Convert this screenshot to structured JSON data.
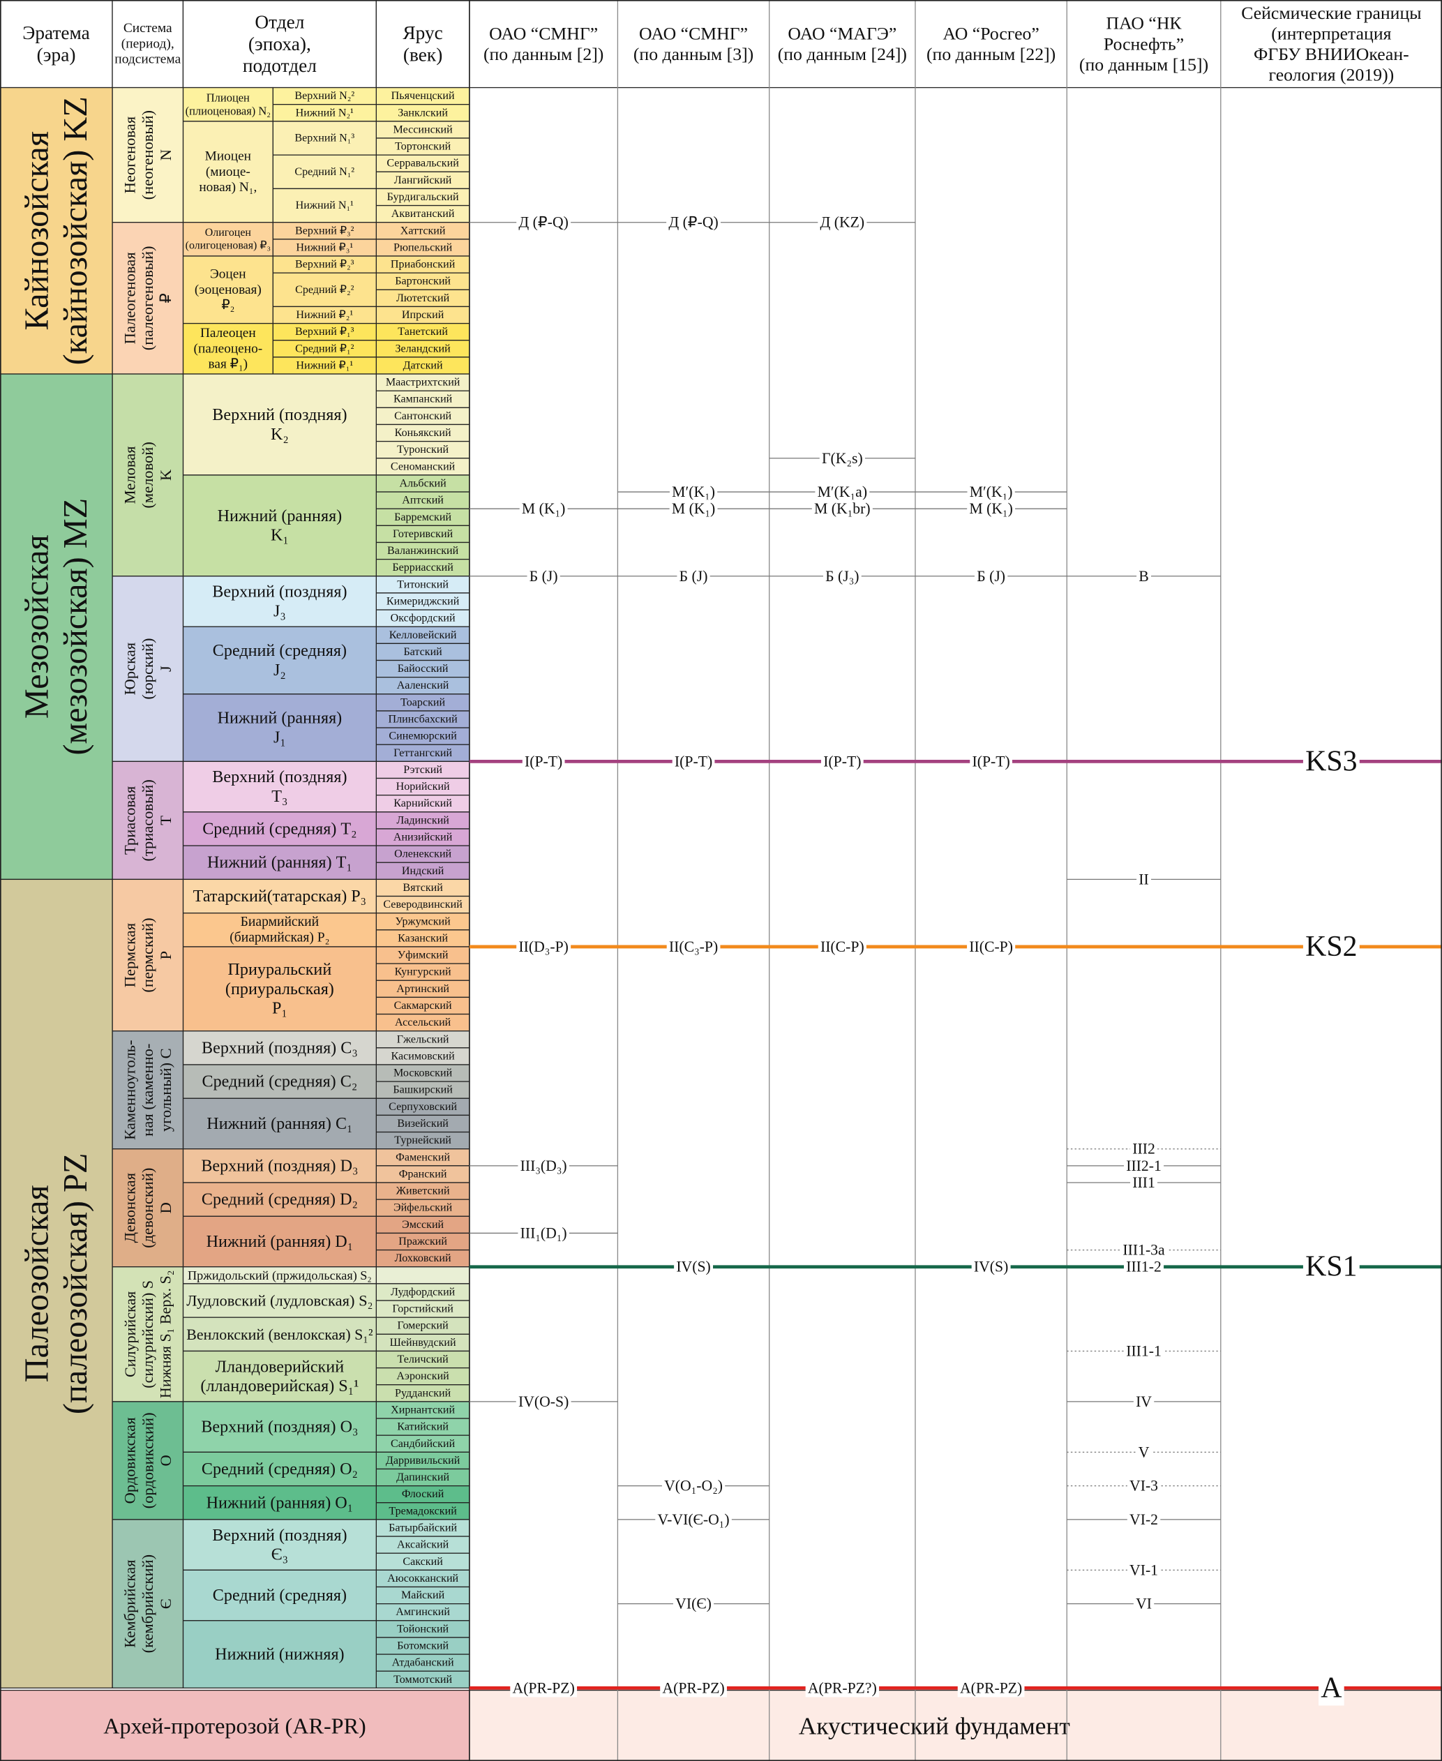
{
  "header": [
    [
      "Эратема",
      "(эра)"
    ],
    [
      "Система",
      "(период),",
      "подсистема"
    ],
    [
      "Отдел",
      "(эпоха),",
      "подотдел"
    ],
    [
      "Ярус",
      "(век)"
    ]
  ],
  "eras": [
    {
      "name": [
        "Кайнозойская",
        "(кайнозойская) KZ"
      ],
      "color": "#f7d58c",
      "systems": [
        {
          "name": [
            "Неогеновая",
            "(неогеновый)",
            "N"
          ],
          "color": "#fbf3c6",
          "series": [
            {
              "name": [
                "Плиоцен",
                "(плиоценовая) N₂"
              ],
              "color": "#fdf29e",
              "subseries": [
                {
                  "name": "Верхний N₂²",
                  "stages": [
                    "Пьяченцский"
                  ]
                },
                {
                  "name": "Нижний N₂¹",
                  "stages": [
                    "Занклский"
                  ]
                }
              ]
            },
            {
              "name": [
                "Миоцен",
                "(миоце-",
                "новая) N₁,"
              ],
              "color": "#fbf0b4",
              "subseries": [
                {
                  "name": "Верхний N₁³",
                  "stages": [
                    "Мессинский",
                    "Тортонский"
                  ]
                },
                {
                  "name": "Средний N₁²",
                  "stages": [
                    "Серравальский",
                    "Лангийский"
                  ]
                },
                {
                  "name": "Нижний N₁¹",
                  "stages": [
                    "Бурдигальский",
                    "Аквитанский"
                  ]
                }
              ]
            }
          ]
        },
        {
          "name": [
            "Палеогеновая",
            "(палеогеновый)",
            "₽"
          ],
          "color": "#fbd4b4",
          "series": [
            {
              "name": [
                "Олигоцен",
                "(олигоценовая) ₽₃"
              ],
              "color": "#fcd49c",
              "subseries": [
                {
                  "name": "Верхний ₽₃²",
                  "stages": [
                    "Хаттский"
                  ]
                },
                {
                  "name": "Нижний ₽₃¹",
                  "stages": [
                    "Рюпельский"
                  ]
                }
              ]
            },
            {
              "name": [
                "Эоцен",
                "(эоценовая)",
                "₽₂"
              ],
              "color": "#fde38e",
              "subseries": [
                {
                  "name": "Верхний ₽₂³",
                  "stages": [
                    "Приабонский"
                  ]
                },
                {
                  "name": "Средний ₽₂²",
                  "stages": [
                    "Бартонский",
                    "Лютетский"
                  ]
                },
                {
                  "name": "Нижний ₽₂¹",
                  "stages": [
                    "Ипрский"
                  ]
                }
              ]
            },
            {
              "name": [
                "Палеоцен",
                "(палеоцено-",
                "вая ₽₁)"
              ],
              "color": "#fde55c",
              "subseries": [
                {
                  "name": "Верхний ₽₁³",
                  "stages": [
                    "Танетский"
                  ]
                },
                {
                  "name": "Средний ₽₁²",
                  "stages": [
                    "Зеландский"
                  ]
                },
                {
                  "name": "Нижний ₽₁¹",
                  "stages": [
                    "Датский"
                  ]
                }
              ]
            }
          ]
        }
      ]
    },
    {
      "name": [
        "Мезозойская",
        "(мезозойская) MZ"
      ],
      "color": "#8fcb9b",
      "systems": [
        {
          "name": [
            "Меловая",
            "(меловой)",
            "K"
          ],
          "color": "#c5dea8",
          "series": [
            {
              "name": [
                "Верхний (поздняя)",
                "K₂"
              ],
              "color": "#f4f1c8",
              "stages": [
                "Маастрихтский",
                "Кампанский",
                "Сантонский",
                "Коньякский",
                "Туронский",
                "Сеноманский"
              ]
            },
            {
              "name": [
                "Нижний (ранняя)",
                "K₁"
              ],
              "color": "#c6e0a4",
              "stages": [
                "Альбский",
                "Аптский",
                "Барремский",
                "Готеривский",
                "Валанжинский",
                "Берриасский"
              ]
            }
          ]
        },
        {
          "name": [
            "Юрская",
            "(юрский)",
            "J"
          ],
          "color": "#d4d8ec",
          "series": [
            {
              "name": [
                "Верхний (поздняя)",
                "J₃"
              ],
              "color": "#d6ecf6",
              "stages": [
                "Титонский",
                "Кимериджский",
                "Оксфордский"
              ]
            },
            {
              "name": [
                "Средний (средняя)",
                "J₂"
              ],
              "color": "#aac0de",
              "stages": [
                "Келловейский",
                "Батский",
                "Байосский",
                "Ааленский"
              ]
            },
            {
              "name": [
                "Нижний (ранняя)",
                "J₁"
              ],
              "color": "#a3aed6",
              "stages": [
                "Тоарский",
                "Плинсбахский",
                "Синемюрский",
                "Геттангский"
              ]
            }
          ]
        },
        {
          "name": [
            "Триасовая",
            "(триасовый)",
            "T"
          ],
          "color": "#d8b4d4",
          "series": [
            {
              "name": [
                "Верхний (поздняя)",
                "T₃"
              ],
              "color": "#efcde6",
              "stages": [
                "Рэтский",
                "Норийский",
                "Карнийский"
              ]
            },
            {
              "name": [
                "Средний (средняя) T₂"
              ],
              "color": "#d8a7d5",
              "stages": [
                "Ладинский",
                "Анизийский"
              ]
            },
            {
              "name": [
                "Нижний (ранняя) T₁"
              ],
              "color": "#c7a2cf",
              "stages": [
                "Оленекский",
                "Индский"
              ]
            }
          ]
        }
      ]
    },
    {
      "name": [
        "Палеозойская",
        "(палеозойская) PZ"
      ],
      "color": "#d2c99b",
      "systems": [
        {
          "name": [
            "Пермская",
            "(пермский)",
            "P"
          ],
          "color": "#f6c9a3",
          "series": [
            {
              "name": [
                "Татарский(татарская) P₃"
              ],
              "color": "#fbd7a7",
              "stages": [
                "Вятский",
                "Северодвинский"
              ]
            },
            {
              "name": [
                "Биармийский",
                "(биармийская) P₂"
              ],
              "color": "#fbc78e",
              "stages": [
                "Уржумский",
                "Казанский"
              ]
            },
            {
              "name": [
                "Приуральский",
                "(приуральская)",
                "P₁"
              ],
              "color": "#f8c08d",
              "stages": [
                "Уфимский",
                "Кунгурский",
                "Артинский",
                "Сакмарский",
                "Ассельский"
              ]
            }
          ]
        },
        {
          "name": [
            "Каменноуголь-",
            "ная (каменно-",
            "угольный) C"
          ],
          "color": "#a7afb4",
          "series": [
            {
              "name": [
                "Верхний (поздняя) C₃"
              ],
              "color": "#d6d6cf",
              "stages": [
                "Гжельский",
                "Касимовский"
              ]
            },
            {
              "name": [
                "Средний (средняя) C₂"
              ],
              "color": "#b7bcb7",
              "stages": [
                "Московский",
                "Башкирский"
              ]
            },
            {
              "name": [
                "Нижний (ранняя) C₁"
              ],
              "color": "#a3aab0",
              "stages": [
                "Серпуховский",
                "Визейский",
                "Турнейский"
              ]
            }
          ]
        },
        {
          "name": [
            "Девонская",
            "(девонский)",
            "D"
          ],
          "color": "#dfae88",
          "series": [
            {
              "name": [
                "Верхний (поздняя) D₃"
              ],
              "color": "#f0c39c",
              "stages": [
                "Фаменский",
                "Франский"
              ]
            },
            {
              "name": [
                "Средний (средняя) D₂"
              ],
              "color": "#e9b28c",
              "stages": [
                "Живетский",
                "Эйфельский"
              ]
            },
            {
              "name": [
                "Нижний (ранняя) D₁"
              ],
              "color": "#e3a584",
              "stages": [
                "Эмсский",
                "Пражский",
                "Лохковский"
              ]
            }
          ]
        },
        {
          "name": [
            "Силурийская",
            "(силурийский) S",
            "Нижняя S₁ Верх. S₂"
          ],
          "color": "#d3e2b6",
          "series": [
            {
              "name": [
                "Пржидольский (пржидольская) S₂"
              ],
              "color": "#e9efd5",
              "stages": [
                null
              ]
            },
            {
              "name": [
                "Лудловский (лудловская) S₂"
              ],
              "color": "#dde9c6",
              "stages": [
                "Лудфордский",
                "Горстийский"
              ]
            },
            {
              "name": [
                "Венлокский (венлокская) S₁²"
              ],
              "color": "#d4e3bd",
              "stages": [
                "Гомерский",
                "Шейнвудский"
              ]
            },
            {
              "name": [
                "Лландоверийский",
                "(лландоверийская) S₁¹"
              ],
              "color": "#cadfae",
              "stages": [
                "Теличский",
                "Аэронский",
                "Рудданский"
              ]
            }
          ]
        },
        {
          "name": [
            "Ордовикская",
            "(ордовикский)",
            "O"
          ],
          "color": "#6dbe92",
          "series": [
            {
              "name": [
                "Верхний (поздняя) O₃"
              ],
              "color": "#8fd3aa",
              "stages": [
                "Хирнантский",
                "Катийский",
                "Сандбийский"
              ]
            },
            {
              "name": [
                "Средний (средняя) O₂"
              ],
              "color": "#7ccb9d",
              "stages": [
                "Дарривильский",
                "Дапинский"
              ]
            },
            {
              "name": [
                "Нижний (ранняя) O₁"
              ],
              "color": "#5dbd8b",
              "stages": [
                "Флоский",
                "Тремадокский"
              ]
            }
          ]
        },
        {
          "name": [
            "Кембрийская",
            "(кембрийский)",
            "Є"
          ],
          "color": "#9cc6b2",
          "series": [
            {
              "name": [
                "Верхний (поздняя)",
                "Є₃"
              ],
              "color": "#b7e0d7",
              "stages": [
                "Батырбайский",
                "Аксайский",
                "Сакский"
              ]
            },
            {
              "name": [
                "Средний (средняя)"
              ],
              "color": "#a9d8d0",
              "stages": [
                "Аюсокканский",
                "Майский",
                "Амгинский"
              ]
            },
            {
              "name": [
                "Нижний (нижняя)"
              ],
              "color": "#99cfc4",
              "stages": [
                "Тойонский",
                "Ботомский",
                "Атдабанский",
                "Томмотский"
              ]
            }
          ]
        }
      ]
    }
  ],
  "interpretations": [
    {
      "title": [
        "ОАО “СМНГ”",
        "(по данным [2])"
      ],
      "horizons": [
        {
          "label": "Д (₽-Q)",
          "base_of": "Аквитанский"
        },
        {
          "label": "М (K₁)",
          "base_of": "Аптский"
        },
        {
          "label": "Б (J)",
          "base_of": "Берриасский"
        },
        {
          "label": "I(P-T)",
          "base_of": "Геттангский"
        },
        {
          "label": "II(D₃-P)",
          "base_of": "Казанский"
        },
        {
          "label": "III₃(D₃)",
          "base_of": "Фаменский"
        },
        {
          "label": "III₁(D₁)",
          "base_of": "Эмсский"
        },
        {
          "label": "IV(O-S)",
          "base_of": "Рудданский"
        },
        {
          "label": "A(PR-PZ)",
          "base_of": "Томмотский"
        }
      ]
    },
    {
      "title": [
        "ОАО “СМНГ”",
        "(по данным [3])"
      ],
      "horizons": [
        {
          "label": "Д (₽-Q)",
          "base_of": "Аквитанский"
        },
        {
          "label": "M′(K₁)",
          "base_of": "Альбский"
        },
        {
          "label": "М (K₁)",
          "base_of": "Аптский"
        },
        {
          "label": "Б (J)",
          "base_of": "Берриасский"
        },
        {
          "label": "I(P-T)",
          "base_of": "Геттангский"
        },
        {
          "label": "II(C₃-P)",
          "base_of": "Казанский"
        },
        {
          "label": "IV(S)",
          "base_of": "Лохковский"
        },
        {
          "label": "V(O₁-O₂)",
          "base_of": "Дапинский"
        },
        {
          "label": "V-VI(Є-O₁)",
          "base_of": "Тремадокский"
        },
        {
          "label": "VI(Є)",
          "base_of": "Майский"
        },
        {
          "label": "A(PR-PZ)",
          "base_of": "Томмотский"
        }
      ]
    },
    {
      "title": [
        "ОАО “МАГЭ”",
        "(по данным [24])"
      ],
      "horizons": [
        {
          "label": "Д (KZ)",
          "base_of": "Аквитанский"
        },
        {
          "label": "Г(K₂s)",
          "base_of": "Туронский"
        },
        {
          "label": "M′(K₁a)",
          "base_of": "Альбский"
        },
        {
          "label": "М (K₁br)",
          "base_of": "Аптский"
        },
        {
          "label": "Б (J₃)",
          "base_of": "Берриасский"
        },
        {
          "label": "I(P-T)",
          "base_of": "Геттангский"
        },
        {
          "label": "II(C-P)",
          "base_of": "Казанский"
        },
        {
          "label": "A(PR-PZ?)",
          "base_of": "Томмотский"
        }
      ]
    },
    {
      "title": [
        "АО “Росгео”",
        "(по данным [22])"
      ],
      "horizons": [
        {
          "label": "M′(K₁)",
          "base_of": "Альбский"
        },
        {
          "label": "М (K₁)",
          "base_of": "Аптский"
        },
        {
          "label": "Б (J)",
          "base_of": "Берриасский"
        },
        {
          "label": "I(P-T)",
          "base_of": "Геттангский"
        },
        {
          "label": "II(C-P)",
          "base_of": "Казанский"
        },
        {
          "label": "IV(S)",
          "base_of": "Лохковский"
        },
        {
          "label": "A(PR-PZ)",
          "base_of": "Томмотский"
        }
      ]
    },
    {
      "title": [
        "ПАО “НК",
        "Роснефть”",
        "(по данным [15])"
      ],
      "horizons": [
        {
          "label": "В",
          "base_of": "Берриасский"
        },
        {
          "label": "II",
          "base_of": "Индский"
        },
        {
          "label": "III2",
          "base_of": "Турнейский",
          "style": "dotted"
        },
        {
          "label": "III2-1",
          "base_of": "Фаменский"
        },
        {
          "label": "III1",
          "base_of": "Франский"
        },
        {
          "label": "III1-3a",
          "base_of": "Пражский",
          "style": "dotted"
        },
        {
          "label": "III1-2",
          "base_of": "Лохковский"
        },
        {
          "label": "III1-1",
          "base_of": "Шейнвудский",
          "style": "dotted"
        },
        {
          "label": "IV",
          "base_of": "Рудданский"
        },
        {
          "label": "V",
          "base_of": "Сандбийский",
          "style": "dotted"
        },
        {
          "label": "VI-3",
          "base_of": "Дапинский",
          "style": "dotted"
        },
        {
          "label": "VI-2",
          "base_of": "Тремадокский"
        },
        {
          "label": "VI-1",
          "base_of": "Сакский",
          "style": "dotted"
        },
        {
          "label": "VI",
          "base_of": "Майский"
        }
      ]
    }
  ],
  "seismic": {
    "title": [
      "Сейсмические границы",
      "(интерпретация",
      "ФГБУ ВНИИОкеан-",
      "геология (2019))"
    ],
    "boundaries": [
      {
        "label": "KS3",
        "color": "#a4417f",
        "base_of": "Геттангский"
      },
      {
        "label": "KS2",
        "color": "#f28a1c",
        "base_of": "Казанский"
      },
      {
        "label": "KS1",
        "color": "#16684a",
        "base_of": "Лохковский"
      },
      {
        "label": "A",
        "color": "#e0231f",
        "base_of": "Томмотский"
      }
    ]
  },
  "basement": {
    "left": "Архей-протерозой (AR-PR)",
    "right": "Акустический фундамент"
  }
}
